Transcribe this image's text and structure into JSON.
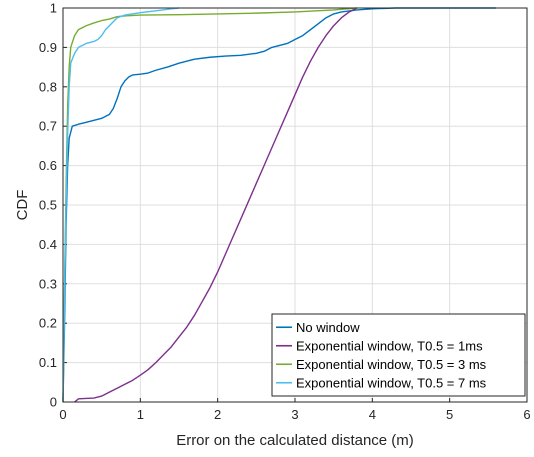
{
  "chart_data": {
    "type": "line",
    "title": "",
    "xlabel": "Error on the calculated distance (m)",
    "ylabel": "CDF",
    "xlim": [
      0,
      6
    ],
    "ylim": [
      0,
      1
    ],
    "xticks": [
      "0",
      "1",
      "2",
      "3",
      "4",
      "5",
      "6"
    ],
    "yticks": [
      "0",
      "0.1",
      "0.2",
      "0.3",
      "0.4",
      "0.5",
      "0.6",
      "0.7",
      "0.8",
      "0.9",
      "1"
    ],
    "grid": true,
    "legend_position": "bottom-right",
    "series": [
      {
        "name": "No window",
        "color": "#0072bd",
        "points": [
          [
            0,
            0
          ],
          [
            0.02,
            0.2
          ],
          [
            0.04,
            0.45
          ],
          [
            0.06,
            0.6
          ],
          [
            0.08,
            0.67
          ],
          [
            0.12,
            0.7
          ],
          [
            0.2,
            0.705
          ],
          [
            0.3,
            0.71
          ],
          [
            0.4,
            0.715
          ],
          [
            0.5,
            0.72
          ],
          [
            0.55,
            0.725
          ],
          [
            0.6,
            0.73
          ],
          [
            0.65,
            0.745
          ],
          [
            0.7,
            0.77
          ],
          [
            0.75,
            0.8
          ],
          [
            0.8,
            0.815
          ],
          [
            0.85,
            0.825
          ],
          [
            0.9,
            0.83
          ],
          [
            1.0,
            0.832
          ],
          [
            1.1,
            0.835
          ],
          [
            1.2,
            0.842
          ],
          [
            1.35,
            0.85
          ],
          [
            1.5,
            0.86
          ],
          [
            1.7,
            0.87
          ],
          [
            1.9,
            0.875
          ],
          [
            2.1,
            0.878
          ],
          [
            2.3,
            0.88
          ],
          [
            2.5,
            0.885
          ],
          [
            2.6,
            0.89
          ],
          [
            2.7,
            0.9
          ],
          [
            2.8,
            0.905
          ],
          [
            2.9,
            0.91
          ],
          [
            3.0,
            0.92
          ],
          [
            3.1,
            0.93
          ],
          [
            3.2,
            0.945
          ],
          [
            3.3,
            0.96
          ],
          [
            3.4,
            0.975
          ],
          [
            3.5,
            0.985
          ],
          [
            3.6,
            0.99
          ],
          [
            3.8,
            0.995
          ],
          [
            4.0,
            0.998
          ],
          [
            4.3,
            1.0
          ],
          [
            5.6,
            1.0
          ]
        ]
      },
      {
        "name": "Exponential window, T0.5 = 1ms",
        "color": "#7e2f8e",
        "points": [
          [
            0.15,
            0
          ],
          [
            0.2,
            0.008
          ],
          [
            0.4,
            0.01
          ],
          [
            0.5,
            0.015
          ],
          [
            0.6,
            0.025
          ],
          [
            0.7,
            0.035
          ],
          [
            0.8,
            0.045
          ],
          [
            0.9,
            0.055
          ],
          [
            1.0,
            0.068
          ],
          [
            1.1,
            0.082
          ],
          [
            1.2,
            0.1
          ],
          [
            1.3,
            0.12
          ],
          [
            1.4,
            0.14
          ],
          [
            1.5,
            0.165
          ],
          [
            1.6,
            0.19
          ],
          [
            1.7,
            0.22
          ],
          [
            1.8,
            0.255
          ],
          [
            1.9,
            0.29
          ],
          [
            2.0,
            0.33
          ],
          [
            2.1,
            0.375
          ],
          [
            2.2,
            0.42
          ],
          [
            2.3,
            0.465
          ],
          [
            2.4,
            0.51
          ],
          [
            2.5,
            0.555
          ],
          [
            2.6,
            0.6
          ],
          [
            2.7,
            0.645
          ],
          [
            2.8,
            0.69
          ],
          [
            2.9,
            0.735
          ],
          [
            3.0,
            0.78
          ],
          [
            3.1,
            0.825
          ],
          [
            3.2,
            0.865
          ],
          [
            3.3,
            0.9
          ],
          [
            3.4,
            0.93
          ],
          [
            3.5,
            0.955
          ],
          [
            3.6,
            0.975
          ],
          [
            3.7,
            0.99
          ],
          [
            3.8,
            1.0
          ]
        ]
      },
      {
        "name": "Exponential window, T0.5 = 3 ms",
        "color": "#77ac30",
        "points": [
          [
            0,
            0
          ],
          [
            0.02,
            0.3
          ],
          [
            0.04,
            0.55
          ],
          [
            0.06,
            0.75
          ],
          [
            0.08,
            0.85
          ],
          [
            0.1,
            0.9
          ],
          [
            0.15,
            0.93
          ],
          [
            0.2,
            0.945
          ],
          [
            0.3,
            0.955
          ],
          [
            0.4,
            0.962
          ],
          [
            0.5,
            0.968
          ],
          [
            0.6,
            0.972
          ],
          [
            0.7,
            0.978
          ],
          [
            0.8,
            0.98
          ],
          [
            1.0,
            0.982
          ],
          [
            1.5,
            0.983
          ],
          [
            2.0,
            0.985
          ],
          [
            2.5,
            0.987
          ],
          [
            3.0,
            0.99
          ],
          [
            3.5,
            0.995
          ],
          [
            3.8,
            1.0
          ]
        ]
      },
      {
        "name": "Exponential window, T0.5 = 7 ms",
        "color": "#4dbeee",
        "points": [
          [
            0,
            0
          ],
          [
            0.02,
            0.28
          ],
          [
            0.04,
            0.5
          ],
          [
            0.06,
            0.68
          ],
          [
            0.08,
            0.8
          ],
          [
            0.1,
            0.86
          ],
          [
            0.15,
            0.885
          ],
          [
            0.2,
            0.9
          ],
          [
            0.3,
            0.91
          ],
          [
            0.4,
            0.915
          ],
          [
            0.45,
            0.92
          ],
          [
            0.5,
            0.93
          ],
          [
            0.55,
            0.945
          ],
          [
            0.6,
            0.955
          ],
          [
            0.65,
            0.965
          ],
          [
            0.7,
            0.975
          ],
          [
            0.8,
            0.982
          ],
          [
            1.0,
            0.988
          ],
          [
            1.2,
            0.993
          ],
          [
            1.4,
            0.998
          ],
          [
            1.5,
            1.0
          ]
        ]
      }
    ]
  }
}
